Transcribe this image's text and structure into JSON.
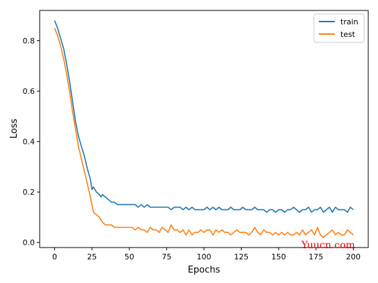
{
  "chart_data": {
    "type": "line",
    "title": "",
    "xlabel": "Epochs",
    "ylabel": "Loss",
    "xlim": [
      -10,
      210
    ],
    "ylim": [
      -0.02,
      0.92
    ],
    "xticks": [
      0,
      25,
      50,
      75,
      100,
      125,
      150,
      175,
      200
    ],
    "yticks": [
      0.0,
      0.2,
      0.4,
      0.6,
      0.8
    ],
    "xtick_labels": [
      "0",
      "25",
      "50",
      "75",
      "100",
      "125",
      "150",
      "175",
      "200"
    ],
    "ytick_labels": [
      "0.0",
      "0.2",
      "0.4",
      "0.6",
      "0.8"
    ],
    "grid": false,
    "legend_position": "top-right",
    "series": [
      {
        "name": "train",
        "color": "#1f77b4",
        "points": [
          [
            0,
            0.88
          ],
          [
            2,
            0.85
          ],
          [
            4,
            0.81
          ],
          [
            6,
            0.77
          ],
          [
            8,
            0.71
          ],
          [
            10,
            0.64
          ],
          [
            12,
            0.56
          ],
          [
            14,
            0.48
          ],
          [
            16,
            0.42
          ],
          [
            18,
            0.38
          ],
          [
            20,
            0.34
          ],
          [
            22,
            0.29
          ],
          [
            24,
            0.25
          ],
          [
            25,
            0.21
          ],
          [
            26,
            0.22
          ],
          [
            28,
            0.2
          ],
          [
            30,
            0.19
          ],
          [
            31,
            0.18
          ],
          [
            32,
            0.19
          ],
          [
            34,
            0.18
          ],
          [
            36,
            0.17
          ],
          [
            38,
            0.16
          ],
          [
            40,
            0.16
          ],
          [
            42,
            0.15
          ],
          [
            44,
            0.15
          ],
          [
            46,
            0.15
          ],
          [
            48,
            0.15
          ],
          [
            50,
            0.15
          ],
          [
            52,
            0.15
          ],
          [
            54,
            0.15
          ],
          [
            56,
            0.14
          ],
          [
            58,
            0.15
          ],
          [
            60,
            0.14
          ],
          [
            62,
            0.15
          ],
          [
            64,
            0.14
          ],
          [
            66,
            0.14
          ],
          [
            68,
            0.14
          ],
          [
            70,
            0.14
          ],
          [
            72,
            0.14
          ],
          [
            74,
            0.14
          ],
          [
            76,
            0.14
          ],
          [
            78,
            0.13
          ],
          [
            80,
            0.14
          ],
          [
            82,
            0.14
          ],
          [
            84,
            0.14
          ],
          [
            86,
            0.13
          ],
          [
            88,
            0.14
          ],
          [
            90,
            0.13
          ],
          [
            92,
            0.14
          ],
          [
            94,
            0.13
          ],
          [
            96,
            0.13
          ],
          [
            98,
            0.13
          ],
          [
            100,
            0.13
          ],
          [
            102,
            0.14
          ],
          [
            104,
            0.13
          ],
          [
            106,
            0.14
          ],
          [
            108,
            0.13
          ],
          [
            110,
            0.14
          ],
          [
            112,
            0.13
          ],
          [
            114,
            0.13
          ],
          [
            116,
            0.13
          ],
          [
            118,
            0.14
          ],
          [
            120,
            0.13
          ],
          [
            122,
            0.13
          ],
          [
            124,
            0.13
          ],
          [
            126,
            0.14
          ],
          [
            128,
            0.13
          ],
          [
            130,
            0.13
          ],
          [
            132,
            0.13
          ],
          [
            134,
            0.14
          ],
          [
            136,
            0.13
          ],
          [
            138,
            0.13
          ],
          [
            140,
            0.13
          ],
          [
            142,
            0.12
          ],
          [
            144,
            0.13
          ],
          [
            146,
            0.13
          ],
          [
            148,
            0.12
          ],
          [
            150,
            0.13
          ],
          [
            152,
            0.13
          ],
          [
            154,
            0.12
          ],
          [
            156,
            0.13
          ],
          [
            158,
            0.13
          ],
          [
            160,
            0.14
          ],
          [
            162,
            0.13
          ],
          [
            164,
            0.12
          ],
          [
            166,
            0.13
          ],
          [
            168,
            0.13
          ],
          [
            170,
            0.14
          ],
          [
            172,
            0.12
          ],
          [
            174,
            0.13
          ],
          [
            176,
            0.13
          ],
          [
            178,
            0.14
          ],
          [
            180,
            0.12
          ],
          [
            182,
            0.13
          ],
          [
            184,
            0.14
          ],
          [
            186,
            0.12
          ],
          [
            188,
            0.14
          ],
          [
            190,
            0.13
          ],
          [
            192,
            0.13
          ],
          [
            194,
            0.13
          ],
          [
            196,
            0.12
          ],
          [
            198,
            0.14
          ],
          [
            200,
            0.13
          ]
        ]
      },
      {
        "name": "test",
        "color": "#ff7f0e",
        "points": [
          [
            0,
            0.85
          ],
          [
            2,
            0.82
          ],
          [
            4,
            0.78
          ],
          [
            6,
            0.73
          ],
          [
            8,
            0.67
          ],
          [
            10,
            0.6
          ],
          [
            12,
            0.52
          ],
          [
            14,
            0.45
          ],
          [
            16,
            0.38
          ],
          [
            18,
            0.33
          ],
          [
            20,
            0.28
          ],
          [
            22,
            0.23
          ],
          [
            24,
            0.18
          ],
          [
            26,
            0.12
          ],
          [
            28,
            0.11
          ],
          [
            30,
            0.1
          ],
          [
            32,
            0.08
          ],
          [
            34,
            0.07
          ],
          [
            36,
            0.07
          ],
          [
            38,
            0.07
          ],
          [
            40,
            0.06
          ],
          [
            42,
            0.06
          ],
          [
            44,
            0.06
          ],
          [
            46,
            0.06
          ],
          [
            48,
            0.06
          ],
          [
            50,
            0.06
          ],
          [
            52,
            0.06
          ],
          [
            54,
            0.05
          ],
          [
            56,
            0.06
          ],
          [
            58,
            0.05
          ],
          [
            60,
            0.05
          ],
          [
            62,
            0.04
          ],
          [
            64,
            0.06
          ],
          [
            66,
            0.05
          ],
          [
            68,
            0.05
          ],
          [
            70,
            0.04
          ],
          [
            72,
            0.06
          ],
          [
            74,
            0.05
          ],
          [
            76,
            0.04
          ],
          [
            78,
            0.07
          ],
          [
            80,
            0.05
          ],
          [
            82,
            0.05
          ],
          [
            84,
            0.04
          ],
          [
            86,
            0.05
          ],
          [
            88,
            0.03
          ],
          [
            90,
            0.05
          ],
          [
            92,
            0.03
          ],
          [
            94,
            0.04
          ],
          [
            96,
            0.04
          ],
          [
            98,
            0.05
          ],
          [
            100,
            0.04
          ],
          [
            102,
            0.05
          ],
          [
            104,
            0.05
          ],
          [
            106,
            0.03
          ],
          [
            108,
            0.05
          ],
          [
            110,
            0.04
          ],
          [
            112,
            0.05
          ],
          [
            114,
            0.04
          ],
          [
            116,
            0.04
          ],
          [
            118,
            0.03
          ],
          [
            120,
            0.04
          ],
          [
            122,
            0.05
          ],
          [
            124,
            0.04
          ],
          [
            126,
            0.04
          ],
          [
            128,
            0.04
          ],
          [
            130,
            0.03
          ],
          [
            132,
            0.04
          ],
          [
            134,
            0.06
          ],
          [
            136,
            0.04
          ],
          [
            138,
            0.03
          ],
          [
            140,
            0.05
          ],
          [
            142,
            0.04
          ],
          [
            144,
            0.04
          ],
          [
            146,
            0.03
          ],
          [
            148,
            0.04
          ],
          [
            150,
            0.03
          ],
          [
            152,
            0.04
          ],
          [
            154,
            0.03
          ],
          [
            156,
            0.04
          ],
          [
            158,
            0.03
          ],
          [
            160,
            0.03
          ],
          [
            162,
            0.04
          ],
          [
            164,
            0.03
          ],
          [
            166,
            0.05
          ],
          [
            168,
            0.03
          ],
          [
            170,
            0.04
          ],
          [
            172,
            0.05
          ],
          [
            174,
            0.03
          ],
          [
            176,
            0.06
          ],
          [
            178,
            0.03
          ],
          [
            180,
            0.02
          ],
          [
            182,
            0.03
          ],
          [
            184,
            0.04
          ],
          [
            186,
            0.05
          ],
          [
            188,
            0.03
          ],
          [
            190,
            0.04
          ],
          [
            192,
            0.03
          ],
          [
            194,
            0.03
          ],
          [
            196,
            0.05
          ],
          [
            198,
            0.04
          ],
          [
            200,
            0.03
          ]
        ]
      }
    ],
    "annotations": [
      "Yuucn.com"
    ]
  },
  "colors": {
    "axis": "#000000",
    "background": "#ffffff",
    "watermark": "#e8000b"
  }
}
